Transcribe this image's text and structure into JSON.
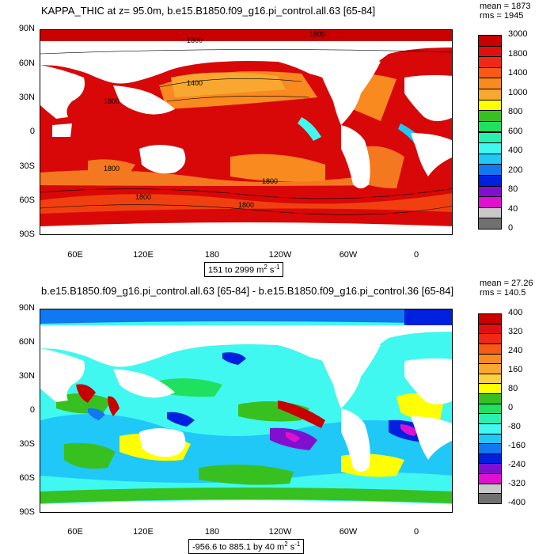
{
  "panel1": {
    "title": "KAPPA_THIC at z=  95.0m, b.e15.B1850.f09_g16.pi_control.all.63 [65-84]",
    "mean": "mean = 1873",
    "rms": "rms = 1945",
    "range_label": "151 to 2999 m",
    "range_units_tail": " s",
    "colorbar_labels": [
      "3000",
      "1800",
      "1400",
      "1000",
      "800",
      "600",
      "400",
      "200",
      "80",
      "40",
      "0"
    ],
    "colorbar_colors": [
      "#c80000",
      "#e01010",
      "#f02818",
      "#f65a14",
      "#f88a20",
      "#f8a830",
      "#ffff00",
      "#38c020",
      "#20e060",
      "#28f0b0",
      "#40f8f0",
      "#20c8f8",
      "#1078f0",
      "#0020e0",
      "#8010d0",
      "#e010d0",
      "#c8c8c8",
      "#707070"
    ],
    "contour_labels": [
      "1800",
      "1400",
      "1800",
      "1800",
      "1800",
      "1800",
      "1800",
      "1800"
    ]
  },
  "panel2": {
    "title": "b.e15.B1850.f09_g16.pi_control.all.63 [65-84] - b.e15.B1850.f09_g16.pi_control.36 [65-84]",
    "mean": "mean = 27.26",
    "rms": "rms = 140.5",
    "range_label": "-956.6 to 885.1 by 40 m",
    "range_units_tail": " s",
    "colorbar_labels": [
      "400",
      "320",
      "240",
      "160",
      "80",
      "0",
      "-80",
      "-160",
      "-240",
      "-320",
      "-400"
    ],
    "colorbar_colors": [
      "#c80000",
      "#e01010",
      "#f02818",
      "#f65a14",
      "#f88a20",
      "#f8a830",
      "#fcd040",
      "#ffff00",
      "#38c020",
      "#20e060",
      "#28f0b0",
      "#40f8f0",
      "#20c8f8",
      "#1078f0",
      "#0020e0",
      "#8010d0",
      "#e010d0",
      "#c8c8c8",
      "#707070"
    ]
  },
  "axes": {
    "lat_labels": [
      "90N",
      "60N",
      "30N",
      "0",
      "30S",
      "60S",
      "90S"
    ],
    "lon_labels": [
      "60E",
      "120E",
      "180",
      "120W",
      "60W",
      "0"
    ]
  }
}
